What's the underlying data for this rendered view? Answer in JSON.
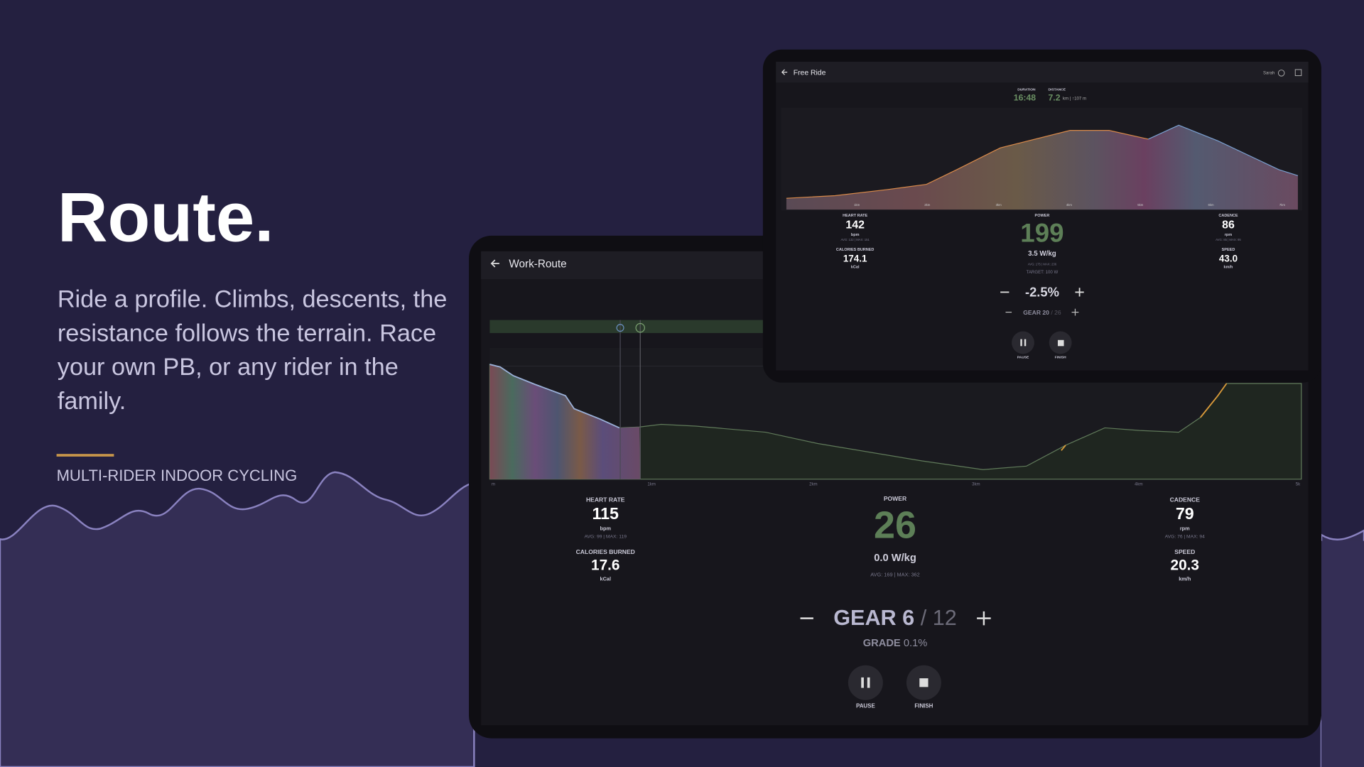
{
  "hero": {
    "title": "Route.",
    "description": [
      "Ride a profile. Climbs, descents, the",
      "resistance follows the terrain. Race",
      "your own PB, or any rider in the",
      "family."
    ],
    "tagline": "MULTI-RIDER INDOOR CYCLING"
  },
  "work_route": {
    "title": "Work-Route",
    "axis": [
      "m",
      "1km",
      "2km",
      "3km",
      "4km",
      "5k"
    ],
    "heart_rate": {
      "label": "HEART RATE",
      "value": "115",
      "unit": "bpm",
      "stats": "AVG: 99 | MAX: 119"
    },
    "calories": {
      "label": "CALORIES BURNED",
      "value": "17.6",
      "unit": "kCal"
    },
    "power": {
      "label": "POWER",
      "value": "26",
      "wkg": "0.0 W/kg",
      "stats": "AVG: 169 | MAX: 362"
    },
    "cadence": {
      "label": "CADENCE",
      "value": "79",
      "unit": "rpm",
      "stats": "AVG: 76 | MAX: 94"
    },
    "speed": {
      "label": "SPEED",
      "value": "20.3",
      "unit": "km/h"
    },
    "gear": {
      "label": "GEAR 6",
      "total": "/ 12"
    },
    "grade": {
      "label": "GRADE",
      "value": "0.1%"
    },
    "buttons": [
      "PAUSE",
      "FINISH"
    ]
  },
  "free_ride": {
    "title": "Free Ride",
    "user": "Sarah",
    "duration": {
      "label": "DURATION",
      "value": "16:48"
    },
    "distance": {
      "label": "DISTANCE",
      "value": "7.2",
      "unit": "km | ↑107 m"
    },
    "axis": [
      "1km",
      "2km",
      "3km",
      "4km",
      "5km",
      "6km",
      "7km"
    ],
    "heart_rate": {
      "label": "HEART RATE",
      "value": "142",
      "unit": "bpm",
      "stats": "AVG: 132 | MAX: 151"
    },
    "calories": {
      "label": "CALORIES BURNED",
      "value": "174.1",
      "unit": "kCal"
    },
    "power": {
      "label": "POWER",
      "value": "199",
      "wkg": "3.5 W/kg",
      "stats": "AVG: 175 | MAX: 236",
      "target": "TARGET: 100 W"
    },
    "cadence": {
      "label": "CADENCE",
      "value": "86",
      "unit": "rpm",
      "stats": "AVG: 85 | MAX: 95"
    },
    "speed": {
      "label": "SPEED",
      "value": "43.0",
      "unit": "km/h"
    },
    "grade": "-2.5%",
    "gear": {
      "label": "GEAR 20",
      "total": "/ 26"
    },
    "buttons": [
      "PAUSE",
      "FINISH"
    ]
  }
}
